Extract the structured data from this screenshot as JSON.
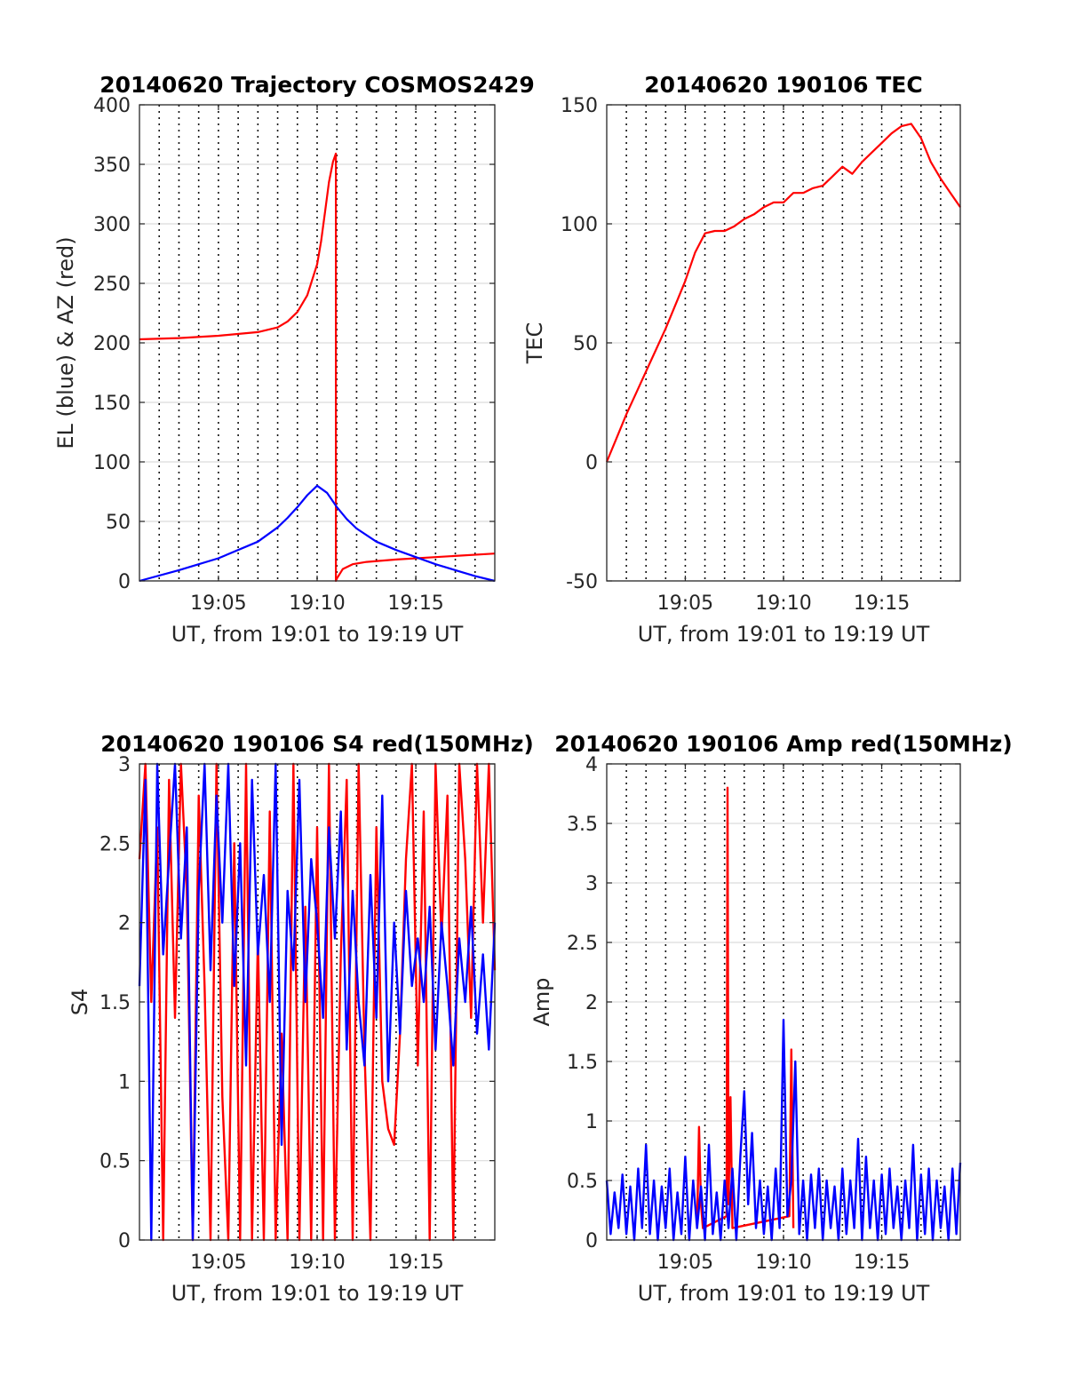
{
  "chart_data": [
    {
      "type": "line",
      "title": "20140620 Trajectory COSMOS2429",
      "xlabel": "UT, from 19:01 to 19:19 UT",
      "ylabel": "EL (blue) & AZ (red)",
      "xlim": [
        1.0,
        19.0
      ],
      "ylim": [
        0,
        400
      ],
      "xticks": [
        5,
        10,
        15
      ],
      "xtick_labels": [
        "19:05",
        "19:10",
        "19:15"
      ],
      "yticks": [
        0,
        50,
        100,
        150,
        200,
        250,
        300,
        350,
        400
      ],
      "ytick_labels": [
        "0",
        "50",
        "100",
        "150",
        "200",
        "250",
        "300",
        "350",
        "400"
      ],
      "grid": true,
      "vgrid_x": [
        2,
        3,
        4,
        5,
        6,
        7,
        8,
        9,
        10,
        11,
        12,
        13,
        14,
        15,
        16,
        17,
        18
      ],
      "series": [
        {
          "color": "#ff0000",
          "x": [
            1.0,
            3.0,
            5.0,
            7.0,
            8.0,
            8.5,
            9.0,
            9.5,
            10.0,
            10.2,
            10.4,
            10.6,
            10.8,
            10.95,
            10.95,
            10.95,
            11.0,
            11.3,
            11.8,
            12.5,
            14.0,
            16.0,
            19.0
          ],
          "y": [
            203,
            204,
            206,
            209,
            213,
            218,
            226,
            240,
            266,
            285,
            310,
            335,
            352,
            359,
            200,
            0,
            2,
            10,
            14,
            16,
            18,
            20,
            23
          ]
        },
        {
          "color": "#0000ff",
          "x": [
            1.0,
            3.0,
            5.0,
            7.0,
            8.0,
            8.5,
            9.0,
            9.5,
            10.0,
            10.5,
            11.0,
            11.5,
            12.0,
            13.0,
            14.0,
            15.0,
            16.0,
            17.0,
            18.0,
            19.0
          ],
          "y": [
            0,
            9,
            19,
            33,
            45,
            53,
            62,
            72,
            80,
            74,
            62,
            52,
            44,
            33,
            26,
            20,
            14,
            9,
            4,
            0
          ]
        }
      ]
    },
    {
      "type": "line",
      "title": "20140620 190106 TEC",
      "xlabel": "UT, from 19:01 to 19:19 UT",
      "ylabel": "TEC",
      "xlim": [
        1.0,
        19.0
      ],
      "ylim": [
        -50,
        150
      ],
      "xticks": [
        5,
        10,
        15
      ],
      "xtick_labels": [
        "19:05",
        "19:10",
        "19:15"
      ],
      "yticks": [
        -50,
        0,
        50,
        100,
        150
      ],
      "ytick_labels": [
        "-50",
        "0",
        "50",
        "100",
        "150"
      ],
      "grid": true,
      "vgrid_x": [
        2,
        3,
        4,
        5,
        6,
        7,
        8,
        9,
        10,
        11,
        12,
        13,
        14,
        15,
        16,
        17,
        18
      ],
      "series": [
        {
          "color": "#ff0000",
          "x": [
            1.0,
            1.5,
            2.0,
            2.5,
            3.0,
            3.5,
            4.0,
            4.5,
            5.0,
            5.5,
            6.0,
            6.5,
            7.0,
            7.5,
            8.0,
            8.5,
            9.0,
            9.5,
            10.0,
            10.5,
            11.0,
            11.5,
            12.0,
            12.5,
            13.0,
            13.5,
            14.0,
            14.5,
            15.0,
            15.5,
            16.0,
            16.5,
            17.0,
            17.5,
            18.0,
            18.5,
            19.0
          ],
          "y": [
            0,
            10,
            20,
            29,
            38,
            47,
            56,
            66,
            76,
            88,
            96,
            97,
            97,
            99,
            102,
            104,
            107,
            109,
            109,
            113,
            113,
            115,
            116,
            120,
            124,
            121,
            126,
            130,
            134,
            138,
            141,
            142,
            136,
            126,
            119,
            113,
            107
          ]
        }
      ]
    },
    {
      "type": "line",
      "title": "20140620 190106 S4 red(150MHz)",
      "xlabel": "UT, from 19:01 to 19:19 UT",
      "ylabel": "S4",
      "xlim": [
        1.0,
        19.0
      ],
      "ylim": [
        0,
        3
      ],
      "xticks": [
        5,
        10,
        15
      ],
      "xtick_labels": [
        "19:05",
        "19:10",
        "19:15"
      ],
      "yticks": [
        0,
        0.5,
        1,
        1.5,
        2,
        2.5,
        3
      ],
      "ytick_labels": [
        "0",
        "0.5",
        "1",
        "1.5",
        "2",
        "2.5",
        "3"
      ],
      "grid": true,
      "vgrid_x": [
        2,
        3,
        4,
        5,
        6,
        7,
        8,
        9,
        10,
        11,
        12,
        13,
        14,
        15,
        16,
        17,
        18
      ],
      "series": [
        {
          "color": "#ff0000",
          "x": [
            1.0,
            1.3,
            1.6,
            1.9,
            2.2,
            2.5,
            2.8,
            3.1,
            3.4,
            3.7,
            4.0,
            4.3,
            4.6,
            4.9,
            5.2,
            5.5,
            5.8,
            6.1,
            6.4,
            6.7,
            7.0,
            7.3,
            7.6,
            7.9,
            8.2,
            8.5,
            8.8,
            9.1,
            9.4,
            9.7,
            10.0,
            10.3,
            10.6,
            10.9,
            11.2,
            11.5,
            11.8,
            12.1,
            12.4,
            12.7,
            13.0,
            13.3,
            13.6,
            13.9,
            14.2,
            14.5,
            14.8,
            15.1,
            15.4,
            15.7,
            16.0,
            16.3,
            16.6,
            16.9,
            17.2,
            17.5,
            17.8,
            18.1,
            18.4,
            18.7,
            19.0
          ],
          "y": [
            2.4,
            3.0,
            1.5,
            2.6,
            0.0,
            2.9,
            1.4,
            3.0,
            2.2,
            0.0,
            2.8,
            1.6,
            0.0,
            3.0,
            0.9,
            0.0,
            2.5,
            0.0,
            3.0,
            0.0,
            1.9,
            0.0,
            2.7,
            0.0,
            1.3,
            0.0,
            3.0,
            0.0,
            2.1,
            0.0,
            2.6,
            0.0,
            3.0,
            0.0,
            1.8,
            2.9,
            0.0,
            3.0,
            1.2,
            0.0,
            2.6,
            1.0,
            0.7,
            0.6,
            1.3,
            2.4,
            3.0,
            1.1,
            2.7,
            0.0,
            3.0,
            1.9,
            2.8,
            0.0,
            3.0,
            2.4,
            1.4,
            3.0,
            2.0,
            3.0,
            1.7
          ]
        },
        {
          "color": "#0000ff",
          "x": [
            1.0,
            1.3,
            1.6,
            1.9,
            2.2,
            2.5,
            2.8,
            3.1,
            3.4,
            3.7,
            4.0,
            4.3,
            4.6,
            4.9,
            5.2,
            5.5,
            5.8,
            6.1,
            6.4,
            6.7,
            7.0,
            7.3,
            7.6,
            7.9,
            8.2,
            8.5,
            8.8,
            9.1,
            9.4,
            9.7,
            10.0,
            10.3,
            10.6,
            10.9,
            11.2,
            11.5,
            11.8,
            12.1,
            12.4,
            12.7,
            13.0,
            13.3,
            13.6,
            13.9,
            14.2,
            14.5,
            14.8,
            15.1,
            15.4,
            15.7,
            16.0,
            16.3,
            16.6,
            16.9,
            17.2,
            17.5,
            17.8,
            18.1,
            18.4,
            18.7,
            19.0
          ],
          "y": [
            1.6,
            2.9,
            0.0,
            3.0,
            1.8,
            2.4,
            3.0,
            1.9,
            2.6,
            0.0,
            2.2,
            3.0,
            1.7,
            2.8,
            2.0,
            3.0,
            1.6,
            2.5,
            1.1,
            2.9,
            1.8,
            2.3,
            1.5,
            3.0,
            0.6,
            2.2,
            1.7,
            2.9,
            1.5,
            2.4,
            2.0,
            1.4,
            2.6,
            1.9,
            2.7,
            1.2,
            2.2,
            1.5,
            1.1,
            2.3,
            1.4,
            2.8,
            1.0,
            2.0,
            1.3,
            2.2,
            1.6,
            1.9,
            1.5,
            2.1,
            1.2,
            2.0,
            1.6,
            1.1,
            1.9,
            1.5,
            2.1,
            1.3,
            1.8,
            1.2,
            2.0
          ]
        }
      ]
    },
    {
      "type": "line",
      "title": "20140620 190106 Amp red(150MHz)",
      "xlabel": "UT, from 19:01 to 19:19 UT",
      "ylabel": "Amp",
      "xlim": [
        1.0,
        19.0
      ],
      "ylim": [
        0,
        4
      ],
      "xticks": [
        5,
        10,
        15
      ],
      "xtick_labels": [
        "19:05",
        "19:10",
        "19:15"
      ],
      "yticks": [
        0,
        0.5,
        1,
        1.5,
        2,
        2.5,
        3,
        3.5,
        4
      ],
      "ytick_labels": [
        "0",
        "0.5",
        "1",
        "1.5",
        "2",
        "2.5",
        "3",
        "3.5",
        "4"
      ],
      "grid": true,
      "vgrid_x": [
        2,
        3,
        4,
        5,
        6,
        7,
        8,
        9,
        10,
        11,
        12,
        13,
        14,
        15,
        16,
        17,
        18
      ],
      "series": [
        {
          "color": "#ff0000",
          "x": [
            5.6,
            5.7,
            5.8,
            5.9,
            7.1,
            7.15,
            7.2,
            7.3,
            7.4,
            10.3,
            10.4,
            10.5
          ],
          "y": [
            0.1,
            0.95,
            0.3,
            0.1,
            0.2,
            3.8,
            0.3,
            1.2,
            0.1,
            0.2,
            1.6,
            0.1
          ]
        },
        {
          "color": "#0000ff",
          "x": [
            1.0,
            1.2,
            1.4,
            1.6,
            1.8,
            2.0,
            2.2,
            2.4,
            2.6,
            2.8,
            3.0,
            3.2,
            3.4,
            3.6,
            3.8,
            4.0,
            4.2,
            4.4,
            4.6,
            4.8,
            5.0,
            5.2,
            5.4,
            5.6,
            5.8,
            6.0,
            6.2,
            6.4,
            6.6,
            6.8,
            7.0,
            7.2,
            7.4,
            7.6,
            7.8,
            8.0,
            8.2,
            8.4,
            8.6,
            8.8,
            9.0,
            9.2,
            9.4,
            9.6,
            9.8,
            10.0,
            10.2,
            10.4,
            10.6,
            10.8,
            11.0,
            11.2,
            11.4,
            11.6,
            11.8,
            12.0,
            12.2,
            12.4,
            12.6,
            12.8,
            13.0,
            13.2,
            13.4,
            13.6,
            13.8,
            14.0,
            14.2,
            14.4,
            14.6,
            14.8,
            15.0,
            15.2,
            15.4,
            15.6,
            15.8,
            16.0,
            16.2,
            16.4,
            16.6,
            16.8,
            17.0,
            17.2,
            17.4,
            17.6,
            17.8,
            18.0,
            18.2,
            18.4,
            18.6,
            18.8,
            19.0
          ],
          "y": [
            0.5,
            0.05,
            0.4,
            0.1,
            0.55,
            0.05,
            0.45,
            0.0,
            0.6,
            0.1,
            0.8,
            0.05,
            0.5,
            0.0,
            0.45,
            0.1,
            0.6,
            0.0,
            0.4,
            0.05,
            0.7,
            0.0,
            0.5,
            0.1,
            0.45,
            0.0,
            0.8,
            0.05,
            0.4,
            0.0,
            0.5,
            0.1,
            0.6,
            0.0,
            0.7,
            1.25,
            0.3,
            0.9,
            0.1,
            0.5,
            0.05,
            0.45,
            0.0,
            0.6,
            0.1,
            1.85,
            0.2,
            0.5,
            1.5,
            0.05,
            0.5,
            0.0,
            0.55,
            0.1,
            0.6,
            0.0,
            0.5,
            0.1,
            0.45,
            0.0,
            0.6,
            0.05,
            0.5,
            0.1,
            0.85,
            0.0,
            0.7,
            0.1,
            0.5,
            0.0,
            0.55,
            0.05,
            0.6,
            0.1,
            0.45,
            0.0,
            0.5,
            0.1,
            0.8,
            0.0,
            0.55,
            0.05,
            0.6,
            0.0,
            0.5,
            0.1,
            0.45,
            0.0,
            0.6,
            0.05,
            0.65
          ]
        }
      ]
    }
  ]
}
